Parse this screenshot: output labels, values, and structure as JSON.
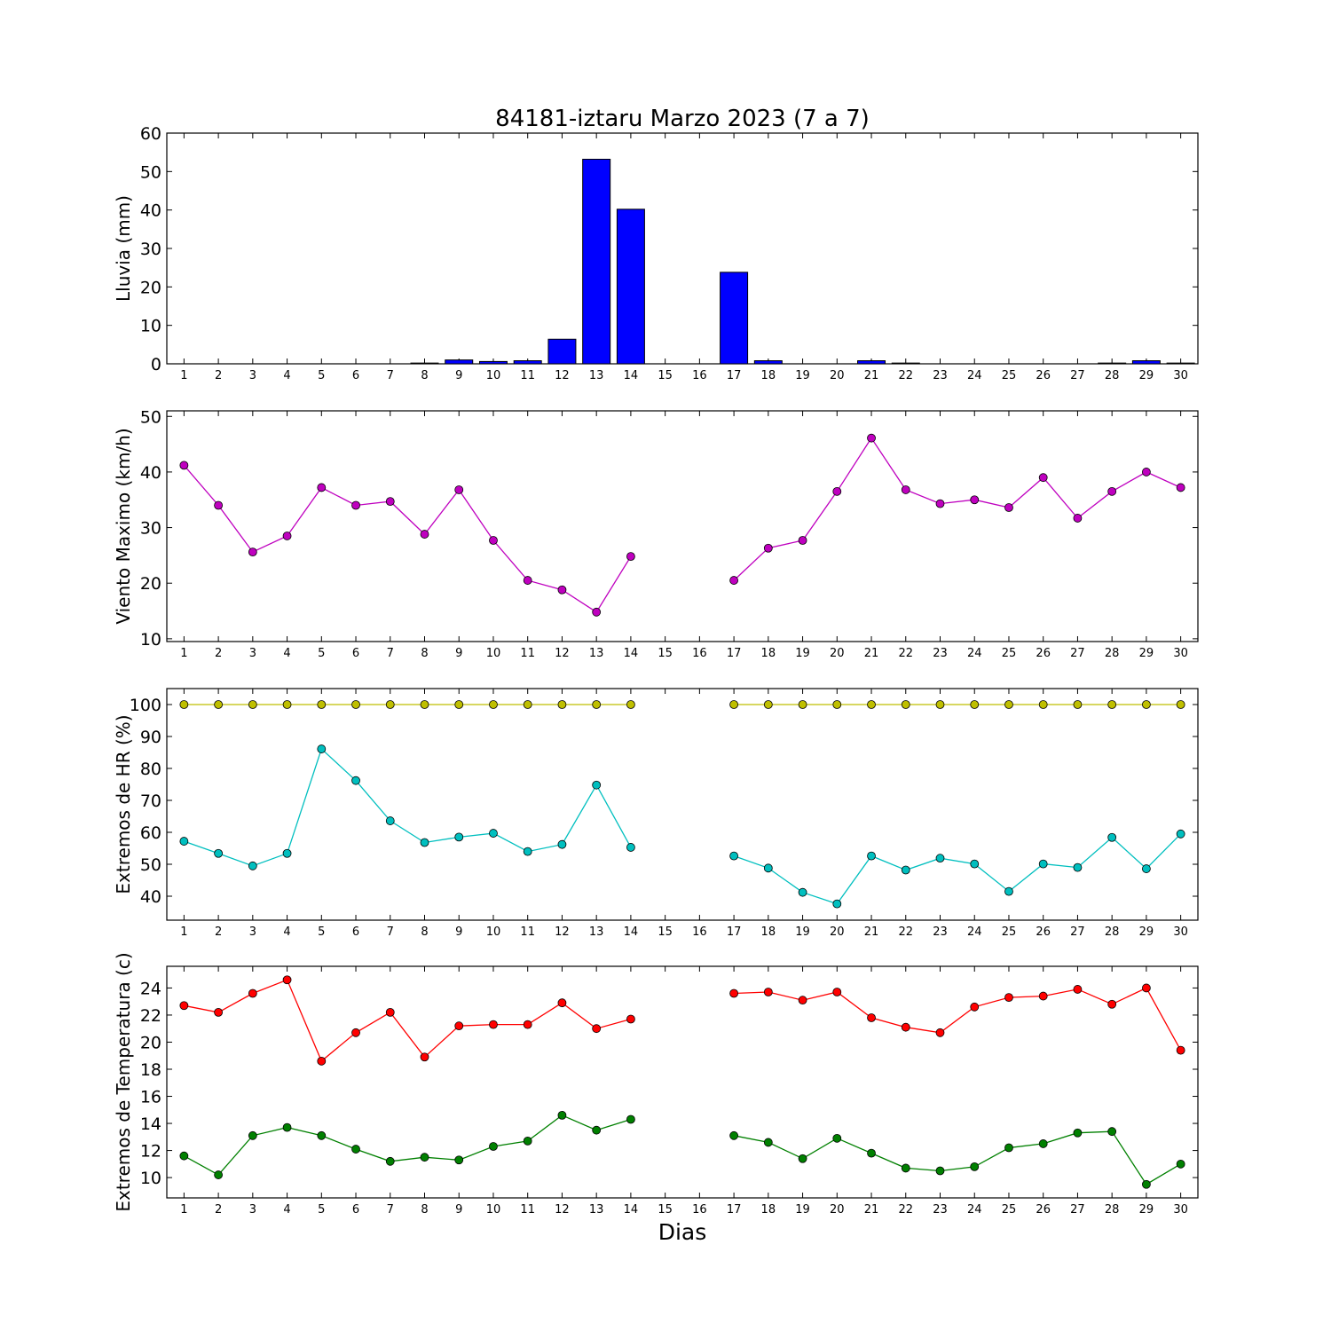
{
  "figure": {
    "title": "84181-iztaru Marzo 2023  (7 a 7)",
    "xlabel": "Dias"
  },
  "chart_data": [
    {
      "type": "bar",
      "ylabel": "Lluvia (mm)",
      "ylim": [
        0,
        60
      ],
      "yticks": [
        0,
        10,
        20,
        30,
        40,
        50,
        60
      ],
      "categories": [
        1,
        2,
        3,
        4,
        5,
        6,
        7,
        8,
        9,
        10,
        11,
        12,
        13,
        14,
        15,
        16,
        17,
        18,
        19,
        20,
        21,
        22,
        23,
        24,
        25,
        26,
        27,
        28,
        29,
        30
      ],
      "values": [
        0,
        0,
        0,
        0,
        0,
        0,
        0,
        0.2,
        1.0,
        0.6,
        0.8,
        6.4,
        53.2,
        40.2,
        0,
        0,
        23.8,
        0.8,
        0,
        0,
        0.8,
        0.2,
        0,
        0,
        0,
        0,
        0,
        0.2,
        0.8,
        0.2
      ],
      "color": "#0000ff",
      "grid": false
    },
    {
      "type": "line",
      "ylabel": "Viento Maximo (km/h)",
      "ylim": [
        9.5,
        51
      ],
      "yticks": [
        10,
        20,
        30,
        40,
        50
      ],
      "x": [
        1,
        2,
        3,
        4,
        5,
        6,
        7,
        8,
        9,
        10,
        11,
        12,
        13,
        14,
        15,
        16,
        17,
        18,
        19,
        20,
        21,
        22,
        23,
        24,
        25,
        26,
        27,
        28,
        29,
        30
      ],
      "series": [
        {
          "values": [
            41.2,
            34.0,
            25.6,
            28.5,
            37.2,
            34.0,
            34.7,
            28.8,
            36.8,
            27.7,
            20.5,
            18.8,
            14.8,
            24.8,
            null,
            null,
            20.5,
            26.3,
            27.7,
            36.5,
            46.1,
            36.8,
            34.3,
            35.0,
            33.6,
            39.0,
            31.7,
            36.5,
            40.0,
            37.2
          ],
          "color": "#bf00bf"
        }
      ],
      "grid": false
    },
    {
      "type": "line",
      "ylabel": "Extremos de HR (%)",
      "ylim": [
        32.5,
        105
      ],
      "yticks": [
        40,
        50,
        60,
        70,
        80,
        90,
        100
      ],
      "x": [
        1,
        2,
        3,
        4,
        5,
        6,
        7,
        8,
        9,
        10,
        11,
        12,
        13,
        14,
        15,
        16,
        17,
        18,
        19,
        20,
        21,
        22,
        23,
        24,
        25,
        26,
        27,
        28,
        29,
        30
      ],
      "series": [
        {
          "values": [
            100,
            100,
            100,
            100,
            100,
            100,
            100,
            100,
            100,
            100,
            100,
            100,
            100,
            100,
            null,
            null,
            100,
            100,
            100,
            100,
            100,
            100,
            100,
            100,
            100,
            100,
            100,
            100,
            100,
            100
          ],
          "color": "#bfbf00"
        },
        {
          "values": [
            57.2,
            53.4,
            49.5,
            53.4,
            86.1,
            76.2,
            63.6,
            56.8,
            58.5,
            59.7,
            54.0,
            56.2,
            74.8,
            55.3,
            null,
            null,
            52.6,
            48.8,
            41.2,
            37.6,
            52.6,
            48.2,
            51.9,
            50.1,
            41.5,
            50.1,
            49.0,
            58.4,
            48.6,
            59.5
          ],
          "color": "#00bfbf"
        }
      ],
      "grid": false
    },
    {
      "type": "line",
      "ylabel": "Extremos de Temperatura (c)",
      "ylim": [
        8.5,
        25.6
      ],
      "yticks": [
        10,
        12,
        14,
        16,
        18,
        20,
        22,
        24
      ],
      "x": [
        1,
        2,
        3,
        4,
        5,
        6,
        7,
        8,
        9,
        10,
        11,
        12,
        13,
        14,
        15,
        16,
        17,
        18,
        19,
        20,
        21,
        22,
        23,
        24,
        25,
        26,
        27,
        28,
        29,
        30
      ],
      "series": [
        {
          "values": [
            22.7,
            22.2,
            23.6,
            24.6,
            18.6,
            20.7,
            22.2,
            18.9,
            21.2,
            21.3,
            21.3,
            22.9,
            21.0,
            21.7,
            null,
            null,
            23.6,
            23.7,
            23.1,
            23.7,
            21.8,
            21.1,
            20.7,
            22.6,
            23.3,
            23.4,
            23.9,
            22.8,
            24.0,
            19.4
          ],
          "color": "#ff0000"
        },
        {
          "values": [
            11.6,
            10.2,
            13.1,
            13.7,
            13.1,
            12.1,
            11.2,
            11.5,
            11.3,
            12.3,
            12.7,
            14.6,
            13.5,
            14.3,
            null,
            null,
            13.1,
            12.6,
            11.4,
            12.9,
            11.8,
            10.7,
            10.5,
            10.8,
            12.2,
            12.5,
            13.3,
            13.4,
            9.5,
            11.0
          ],
          "color": "#008000"
        }
      ],
      "grid": false
    }
  ]
}
